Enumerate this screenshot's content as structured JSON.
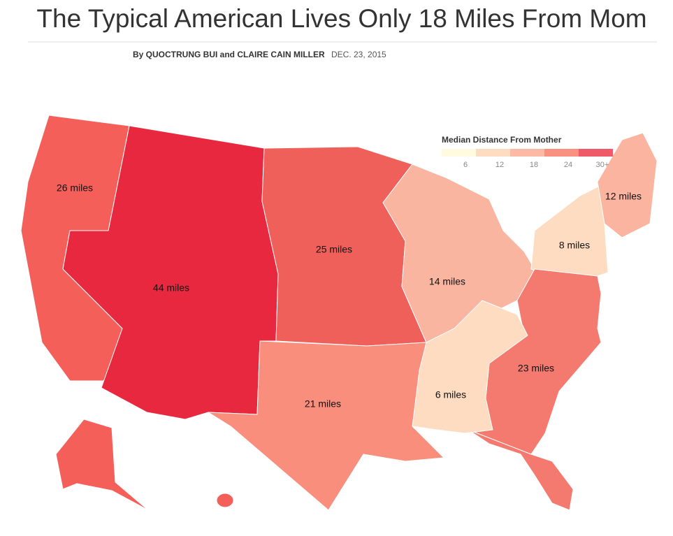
{
  "header": {
    "title": "The Typical American Lives Only 18 Miles From Mom",
    "byline": "By QUOCTRUNG BUI and CLAIRE CAIN MILLER",
    "date": "DEC. 23, 2015"
  },
  "legend": {
    "title": "Median Distance From Mother",
    "colors": [
      "#fffbe0",
      "#fddcc1",
      "#fbb9a6",
      "#f99080",
      "#ee5a68"
    ],
    "ticks": [
      6,
      12,
      18,
      24,
      {
        "value": 30,
        "label": "30+"
      }
    ]
  },
  "regions": [
    {
      "label": "26 miles",
      "color": "#f45f5a"
    },
    {
      "label": "44 miles",
      "color": "#e8283f"
    },
    {
      "label": "25 miles",
      "color": "#f0605a"
    },
    {
      "label": "14 miles",
      "color": "#f9b5a0"
    },
    {
      "label": "8 miles",
      "color": "#fddcc1"
    },
    {
      "label": "12 miles",
      "color": "#fbb4a0"
    },
    {
      "label": "23 miles",
      "color": "#f47a70"
    },
    {
      "label": "6 miles",
      "color": "#fddcc1"
    },
    {
      "label": "21 miles",
      "color": "#f98e7c"
    }
  ]
}
